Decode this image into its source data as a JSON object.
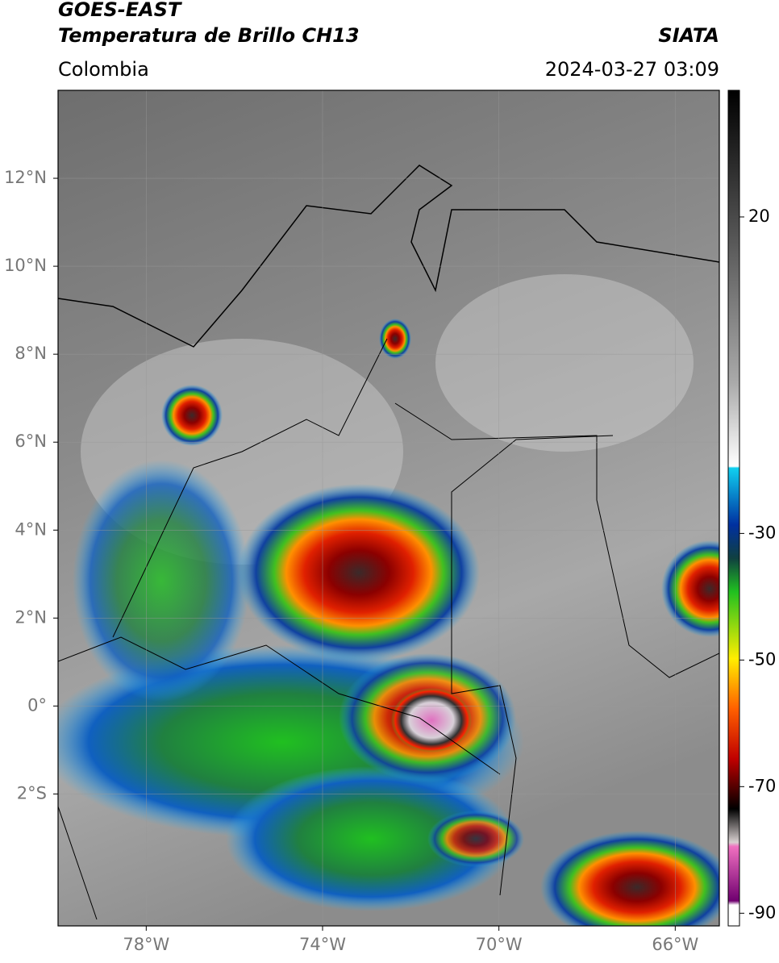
{
  "map": {
    "title": "GOES-EAST",
    "subtitle": "Temperatura de Brillo CH13",
    "source": "SIATA",
    "region": "Colombia",
    "timestamp": "2024-03-27 03:09",
    "lonlim": [
      -80,
      -65
    ],
    "latlim": [
      -5,
      14
    ],
    "lon_ticks": [
      {
        "value": -78,
        "label": "78°W"
      },
      {
        "value": -74,
        "label": "74°W"
      },
      {
        "value": -70,
        "label": "70°W"
      },
      {
        "value": -66,
        "label": "66°W"
      }
    ],
    "lat_ticks": [
      {
        "value": 12,
        "label": "12°N"
      },
      {
        "value": 10,
        "label": "10°N"
      },
      {
        "value": 8,
        "label": "8°N"
      },
      {
        "value": 6,
        "label": "6°N"
      },
      {
        "value": 4,
        "label": "4°N"
      },
      {
        "value": 2,
        "label": "2°N"
      },
      {
        "value": 0,
        "label": "0°"
      },
      {
        "value": -2,
        "label": "2°S"
      }
    ],
    "colorbar": {
      "lim": [
        -92,
        40
      ],
      "ticks": [
        20,
        -30,
        -50,
        -70,
        -90
      ]
    }
  }
}
